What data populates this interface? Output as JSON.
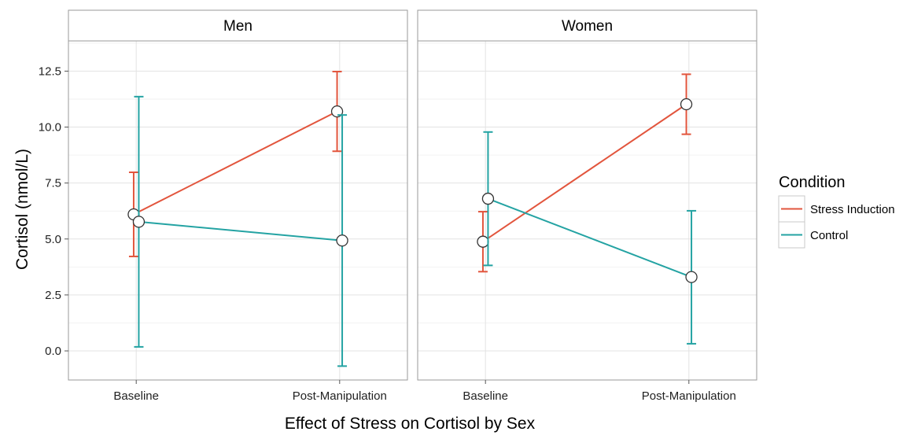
{
  "chart_data": {
    "type": "line",
    "xlabel": "Effect of Stress on Cortisol by Sex",
    "ylabel": "Cortisol (nmol/L)",
    "ylim": [
      -1.3,
      13.85
    ],
    "yticks": [
      "0.0",
      "2.5",
      "5.0",
      "7.5",
      "10.0",
      "12.5"
    ],
    "categories": [
      "Baseline",
      "Post-Manipulation"
    ],
    "grid": true,
    "legend": {
      "title": "Condition",
      "position": "right",
      "entries": [
        "Stress Induction",
        "Control"
      ]
    },
    "colors": {
      "Stress Induction": "#e2553d",
      "Control": "#24a3a3"
    },
    "panels": [
      {
        "name": "Men",
        "series": [
          {
            "name": "Stress Induction",
            "values": [
              6.1,
              10.7
            ],
            "lower": [
              4.22,
              8.92
            ],
            "upper": [
              7.98,
              12.48
            ]
          },
          {
            "name": "Control",
            "values": [
              5.77,
              4.93
            ],
            "lower": [
              0.18,
              -0.68
            ],
            "upper": [
              11.36,
              10.54
            ]
          }
        ]
      },
      {
        "name": "Women",
        "series": [
          {
            "name": "Stress Induction",
            "values": [
              4.88,
              11.02
            ],
            "lower": [
              3.54,
              9.68
            ],
            "upper": [
              6.22,
              12.36
            ]
          },
          {
            "name": "Control",
            "values": [
              6.8,
              3.3
            ],
            "lower": [
              3.82,
              0.32
            ],
            "upper": [
              9.78,
              6.26
            ]
          }
        ]
      }
    ]
  }
}
